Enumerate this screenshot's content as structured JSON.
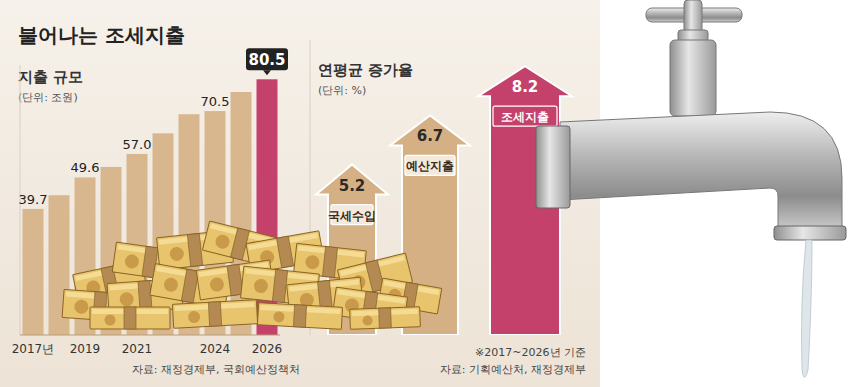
{
  "chart_data": [
    {
      "type": "bar",
      "title": "불어나는 조세지출",
      "subtitle": "지출 규모",
      "ylabel": "(단위: 조원)",
      "annotations": [
        "자료: 재정경제부, 국회예산정책처"
      ],
      "categories": [
        "2017년",
        null,
        "2019",
        null,
        "2021",
        null,
        null,
        "2024",
        null,
        "2026"
      ],
      "values": [
        39.7,
        44.0,
        49.6,
        52.9,
        57.0,
        63.5,
        69.5,
        70.5,
        76.5,
        80.5
      ],
      "value_labels": [
        "39.7",
        null,
        "49.6",
        null,
        "57.0",
        null,
        null,
        "70.5",
        null,
        "80.5"
      ],
      "colors": [
        "#d8b78f",
        "#d8b78f",
        "#d8b78f",
        "#d8b78f",
        "#d8b78f",
        "#d8b78f",
        "#d8b78f",
        "#d8b78f",
        "#d8b78f",
        "#c4416b"
      ],
      "ylim": [
        0,
        85
      ],
      "data_labels": true,
      "tick_labels": "x",
      "grid": false
    },
    {
      "type": "arrow",
      "title": "연평균 증가율",
      "ylabel": "(단위: %)",
      "annotations": [
        "※2017~2026년 기준",
        "자료: 기획예산처, 재정경제부"
      ],
      "categories": [
        "국세수입",
        "예산지출",
        "조세지출"
      ],
      "values": [
        5.2,
        6.7,
        8.2
      ],
      "colors": [
        "#d6b085",
        "#d6b085",
        "#c4416b"
      ],
      "ylim": [
        0,
        9
      ],
      "data_labels": true,
      "tick_labels": false,
      "grid": false
    }
  ]
}
